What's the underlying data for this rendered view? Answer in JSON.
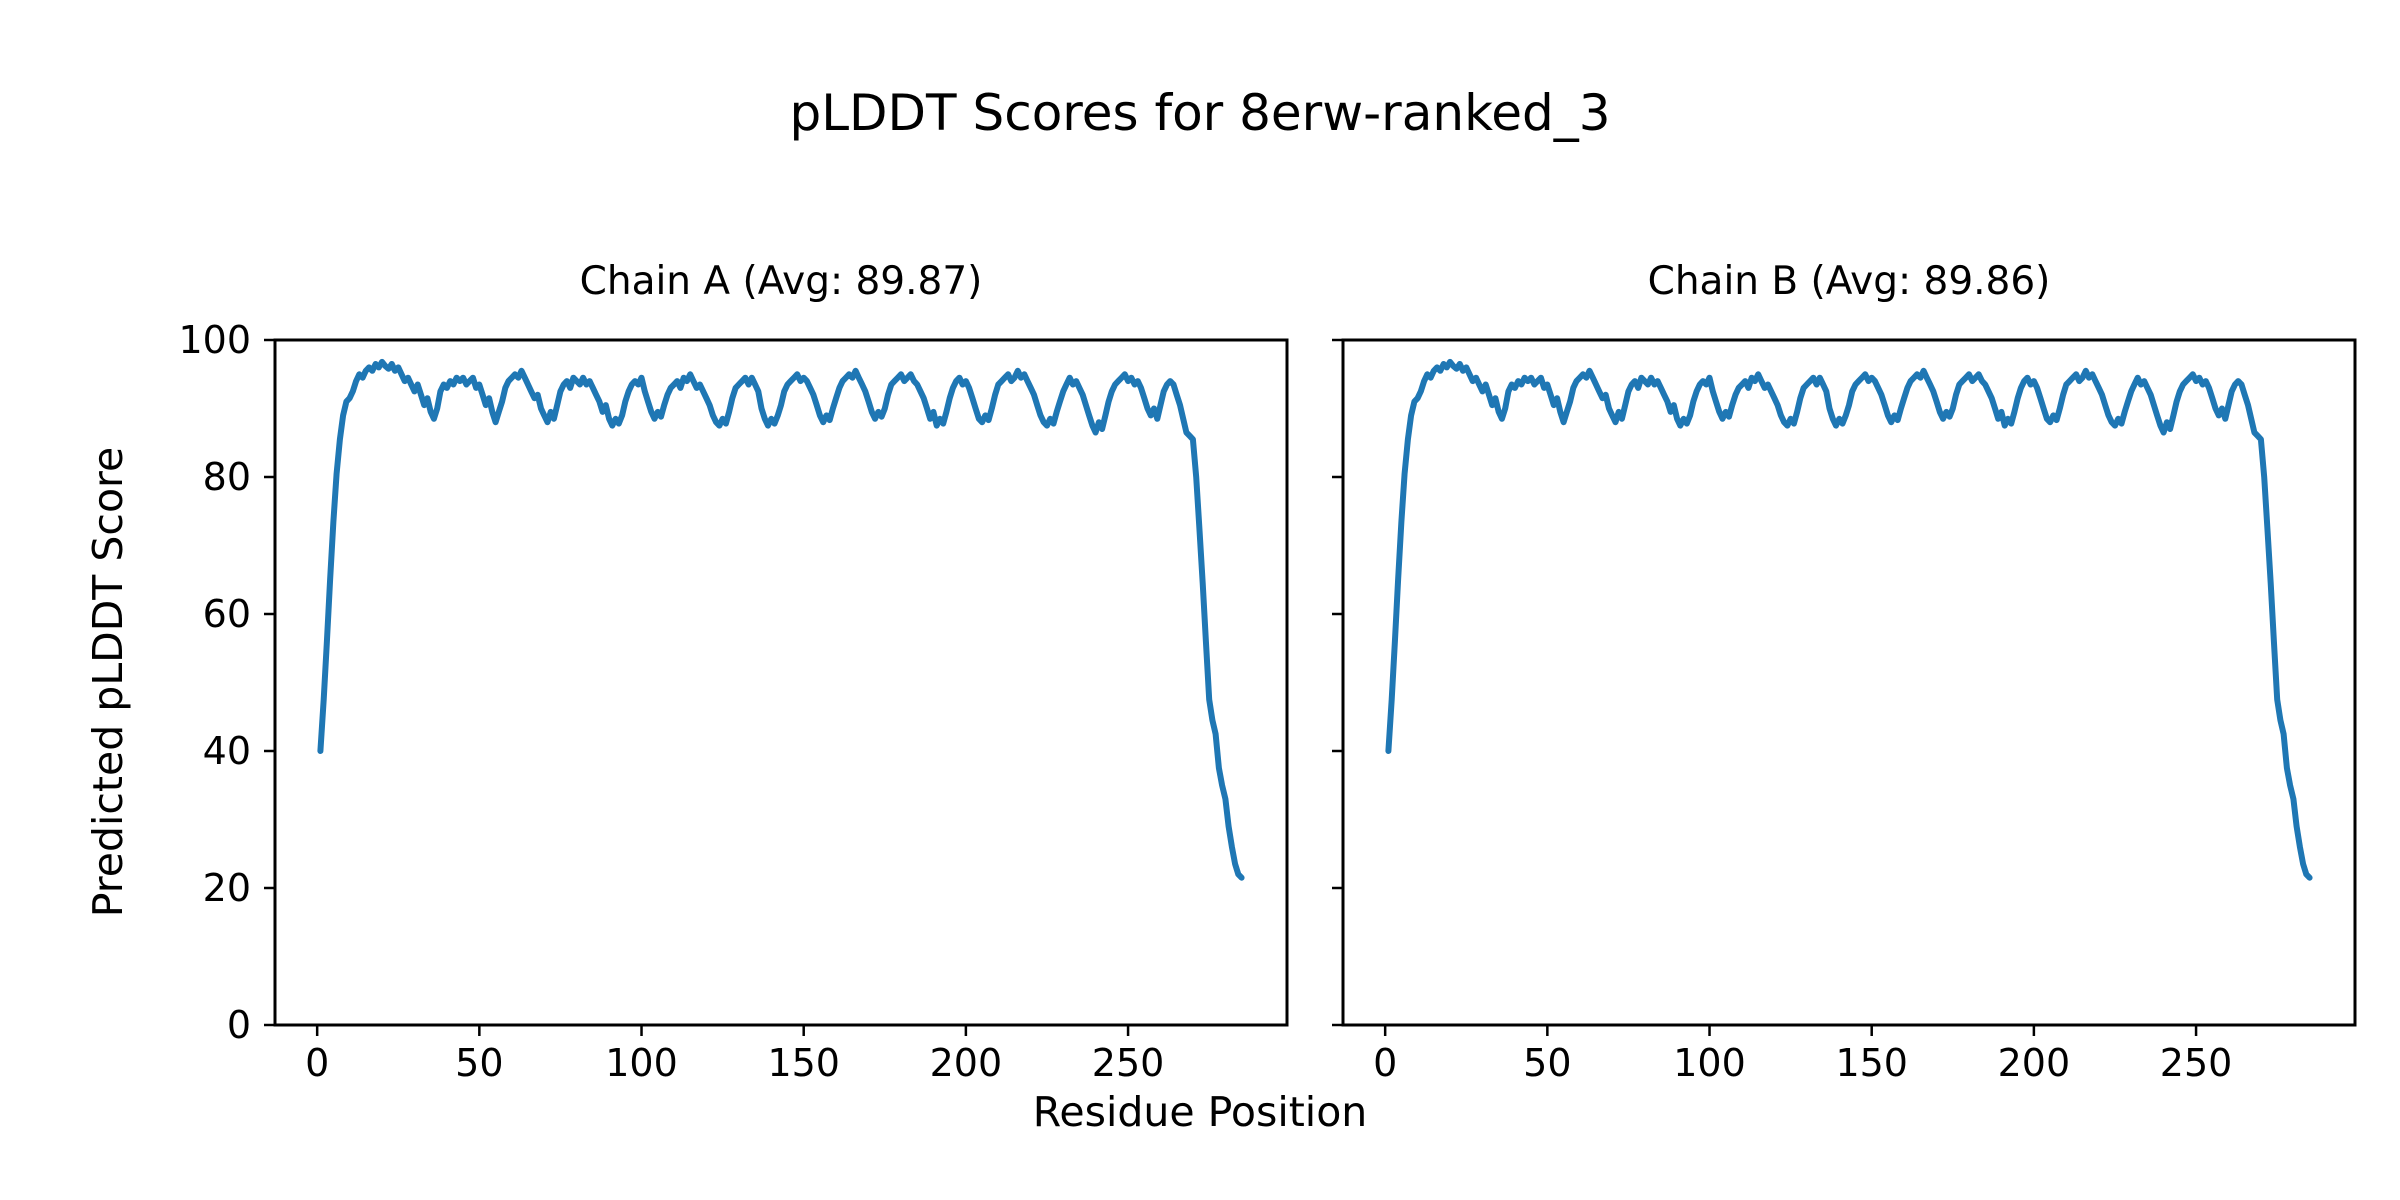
{
  "figure": {
    "title": "pLDDT Scores for 8erw-ranked_3",
    "background_color": "#ffffff",
    "text_color": "#000000"
  },
  "chart_data": {
    "type": "line",
    "title": "pLDDT Scores for 8erw-ranked_3",
    "xlabel": "Residue Position",
    "ylabel": "Predicted pLDDT Score",
    "line_color": "#1f77b4",
    "axis_color": "#000000",
    "grid": false,
    "legend": "none",
    "xlim": [
      -13,
      299
    ],
    "ylim": [
      0,
      100
    ],
    "xticks": [
      0,
      50,
      100,
      150,
      200,
      250
    ],
    "yticks": [
      0,
      20,
      40,
      60,
      80,
      100
    ],
    "x_start": 1,
    "subplots": [
      {
        "title": "Chain A (Avg: 89.87)",
        "series_name": "Chain A",
        "avg": 89.87,
        "values": [
          40.0,
          47.5,
          56.0,
          65.0,
          73.5,
          80.5,
          85.5,
          89.0,
          91.0,
          91.5,
          92.5,
          94.0,
          95.0,
          94.5,
          95.5,
          96.0,
          95.5,
          96.5,
          96.0,
          96.8,
          96.2,
          95.8,
          96.5,
          95.5,
          96.0,
          95.0,
          94.0,
          94.5,
          93.5,
          92.5,
          93.5,
          92.0,
          90.5,
          91.5,
          89.5,
          88.5,
          90.0,
          92.5,
          93.5,
          93.0,
          94.0,
          93.5,
          94.5,
          94.0,
          94.5,
          93.5,
          94.0,
          94.5,
          93.0,
          93.5,
          92.0,
          90.5,
          91.5,
          89.5,
          88.0,
          89.5,
          91.0,
          93.0,
          94.0,
          94.5,
          95.0,
          94.5,
          95.5,
          94.5,
          93.5,
          92.5,
          91.5,
          92.0,
          90.0,
          89.0,
          88.0,
          89.5,
          88.5,
          90.5,
          92.5,
          93.5,
          94.0,
          93.0,
          94.5,
          94.0,
          93.5,
          94.5,
          93.5,
          94.0,
          93.0,
          92.0,
          91.0,
          89.5,
          90.5,
          88.5,
          87.5,
          88.5,
          87.8,
          89.0,
          91.0,
          92.5,
          93.5,
          94.0,
          93.5,
          94.5,
          92.5,
          91.0,
          89.5,
          88.5,
          89.5,
          88.8,
          90.5,
          92.0,
          93.0,
          93.5,
          94.0,
          93.0,
          94.5,
          94.0,
          95.0,
          94.0,
          93.0,
          93.5,
          92.5,
          91.5,
          90.5,
          89.0,
          88.0,
          87.5,
          88.5,
          87.8,
          89.5,
          91.5,
          93.0,
          93.5,
          94.0,
          94.5,
          93.5,
          94.5,
          93.5,
          92.5,
          90.0,
          88.5,
          87.5,
          88.5,
          87.8,
          89.0,
          90.5,
          92.5,
          93.5,
          94.0,
          94.5,
          95.0,
          94.0,
          94.5,
          94.0,
          93.0,
          92.0,
          90.5,
          89.0,
          88.0,
          89.0,
          88.3,
          90.0,
          91.5,
          93.0,
          94.0,
          94.5,
          95.0,
          94.5,
          95.5,
          94.5,
          93.5,
          92.5,
          91.0,
          89.5,
          88.5,
          89.5,
          88.8,
          90.0,
          92.0,
          93.5,
          94.0,
          94.5,
          95.0,
          94.0,
          94.5,
          95.0,
          94.0,
          93.5,
          92.5,
          91.5,
          90.0,
          88.5,
          89.5,
          87.5,
          88.5,
          87.8,
          89.5,
          91.5,
          93.0,
          94.0,
          94.5,
          93.5,
          94.0,
          93.0,
          91.5,
          90.0,
          88.5,
          88.0,
          89.0,
          88.3,
          90.0,
          92.0,
          93.5,
          94.0,
          94.5,
          95.0,
          94.0,
          94.5,
          95.5,
          94.5,
          95.0,
          94.0,
          93.0,
          92.0,
          90.5,
          89.0,
          88.0,
          87.5,
          88.5,
          87.8,
          89.5,
          91.0,
          92.5,
          93.5,
          94.5,
          93.5,
          94.0,
          93.0,
          92.0,
          90.5,
          89.0,
          87.5,
          86.5,
          88.0,
          87.0,
          89.0,
          91.0,
          92.5,
          93.5,
          94.0,
          94.5,
          95.0,
          94.0,
          94.5,
          93.5,
          94.0,
          93.0,
          91.5,
          90.0,
          89.0,
          90.0,
          88.5,
          90.5,
          92.5,
          93.5,
          94.0,
          93.5,
          92.0,
          90.5,
          88.5,
          86.5,
          86.0,
          85.5,
          80.0,
          72.5,
          64.5,
          56.0,
          47.5,
          44.5,
          42.5,
          37.5,
          35.0,
          33.0,
          29.0,
          26.0,
          23.5,
          22.0,
          21.5
        ]
      },
      {
        "title": "Chain B (Avg: 89.86)",
        "series_name": "Chain B",
        "avg": 89.86,
        "values": [
          40.0,
          47.5,
          56.0,
          65.0,
          73.5,
          80.5,
          85.5,
          89.0,
          91.0,
          91.5,
          92.5,
          94.0,
          95.0,
          94.5,
          95.5,
          96.0,
          95.5,
          96.5,
          96.0,
          96.8,
          96.2,
          95.8,
          96.5,
          95.5,
          96.0,
          95.0,
          94.0,
          94.5,
          93.5,
          92.5,
          93.5,
          92.0,
          90.5,
          91.5,
          89.5,
          88.5,
          90.0,
          92.5,
          93.5,
          93.0,
          94.0,
          93.5,
          94.5,
          94.0,
          94.5,
          93.5,
          94.0,
          94.5,
          93.0,
          93.5,
          92.0,
          90.5,
          91.5,
          89.5,
          88.0,
          89.5,
          91.0,
          93.0,
          94.0,
          94.5,
          95.0,
          94.5,
          95.5,
          94.5,
          93.5,
          92.5,
          91.5,
          92.0,
          90.0,
          89.0,
          88.0,
          89.5,
          88.5,
          90.5,
          92.5,
          93.5,
          94.0,
          93.0,
          94.5,
          94.0,
          93.5,
          94.5,
          93.5,
          94.0,
          93.0,
          92.0,
          91.0,
          89.5,
          90.5,
          88.5,
          87.5,
          88.5,
          87.8,
          89.0,
          91.0,
          92.5,
          93.5,
          94.0,
          93.5,
          94.5,
          92.5,
          91.0,
          89.5,
          88.5,
          89.5,
          88.8,
          90.5,
          92.0,
          93.0,
          93.5,
          94.0,
          93.0,
          94.5,
          94.0,
          95.0,
          94.0,
          93.0,
          93.5,
          92.5,
          91.5,
          90.5,
          89.0,
          88.0,
          87.5,
          88.5,
          87.8,
          89.5,
          91.5,
          93.0,
          93.5,
          94.0,
          94.5,
          93.5,
          94.5,
          93.5,
          92.5,
          90.0,
          88.5,
          87.5,
          88.5,
          87.8,
          89.0,
          90.5,
          92.5,
          93.5,
          94.0,
          94.5,
          95.0,
          94.0,
          94.5,
          94.0,
          93.0,
          92.0,
          90.5,
          89.0,
          88.0,
          89.0,
          88.3,
          90.0,
          91.5,
          93.0,
          94.0,
          94.5,
          95.0,
          94.5,
          95.5,
          94.5,
          93.5,
          92.5,
          91.0,
          89.5,
          88.5,
          89.5,
          88.8,
          90.0,
          92.0,
          93.5,
          94.0,
          94.5,
          95.0,
          94.0,
          94.5,
          95.0,
          94.0,
          93.5,
          92.5,
          91.5,
          90.0,
          88.5,
          89.5,
          87.5,
          88.5,
          87.8,
          89.5,
          91.5,
          93.0,
          94.0,
          94.5,
          93.5,
          94.0,
          93.0,
          91.5,
          90.0,
          88.5,
          88.0,
          89.0,
          88.3,
          90.0,
          92.0,
          93.5,
          94.0,
          94.5,
          95.0,
          94.0,
          94.5,
          95.5,
          94.5,
          95.0,
          94.0,
          93.0,
          92.0,
          90.5,
          89.0,
          88.0,
          87.5,
          88.5,
          87.8,
          89.5,
          91.0,
          92.5,
          93.5,
          94.5,
          93.5,
          94.0,
          93.0,
          92.0,
          90.5,
          89.0,
          87.5,
          86.5,
          88.0,
          87.0,
          89.0,
          91.0,
          92.5,
          93.5,
          94.0,
          94.5,
          95.0,
          94.0,
          94.5,
          93.5,
          94.0,
          93.0,
          91.5,
          90.0,
          89.0,
          90.0,
          88.5,
          90.5,
          92.5,
          93.5,
          94.0,
          93.5,
          92.0,
          90.5,
          88.5,
          86.5,
          86.0,
          85.5,
          80.0,
          72.5,
          64.5,
          56.0,
          47.5,
          44.5,
          42.5,
          37.5,
          35.0,
          33.0,
          29.0,
          26.0,
          23.5,
          22.0,
          21.5
        ]
      }
    ]
  }
}
